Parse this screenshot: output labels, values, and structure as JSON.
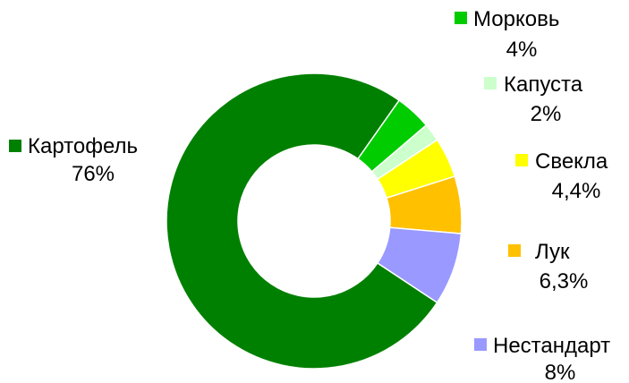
{
  "chart_data": {
    "type": "pie",
    "variant": "donut",
    "title": "",
    "series": [
      {
        "name": "",
        "slices": [
          {
            "label": "Картофель",
            "value": 76,
            "value_label": "76%",
            "color": "#008000"
          },
          {
            "label": "Морковь",
            "value": 4,
            "value_label": "4%",
            "color": "#00cc00"
          },
          {
            "label": "Капуста",
            "value": 2,
            "value_label": "2%",
            "color": "#ccffcc"
          },
          {
            "label": "Свекла",
            "value": 4.4,
            "value_label": "4,4%",
            "color": "#ffff00"
          },
          {
            "label": "Лук",
            "value": 6.3,
            "value_label": "6,3%",
            "color": "#ffc000"
          },
          {
            "label": "Нестандарт",
            "value": 8,
            "value_label": "8%",
            "color": "#9999ff"
          }
        ]
      }
    ],
    "legend": "labels beside slices"
  }
}
